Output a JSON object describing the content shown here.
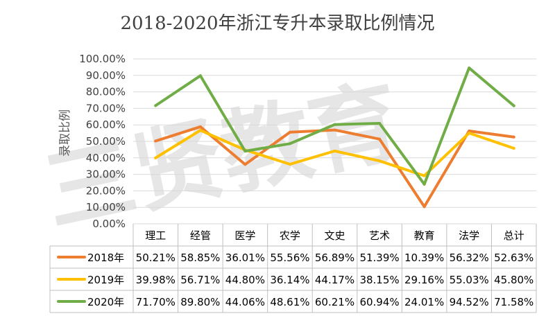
{
  "watermark": "三贤教育",
  "chart_data": {
    "type": "line",
    "title": "2018-2020年浙江专升本录取比例情况",
    "ylabel": "录取比例",
    "xlabel": "",
    "categories": [
      "理工",
      "经管",
      "医学",
      "农学",
      "文史",
      "艺术",
      "教育",
      "法学",
      "总计"
    ],
    "ylim": [
      0,
      100
    ],
    "yticks": [
      "0.00%",
      "10.00%",
      "20.00%",
      "30.00%",
      "40.00%",
      "50.00%",
      "60.00%",
      "70.00%",
      "80.00%",
      "90.00%",
      "100.00%"
    ],
    "grid": true,
    "legend_placement": "data-table",
    "series": [
      {
        "name": "2018年",
        "color": "#ed7d31",
        "values": [
          50.21,
          58.85,
          36.01,
          55.56,
          56.89,
          51.39,
          10.39,
          56.32,
          52.63
        ],
        "labels": [
          "50.21%",
          "58.85%",
          "36.01%",
          "55.56%",
          "56.89%",
          "51.39%",
          "10.39%",
          "56.32%",
          "52.63%"
        ]
      },
      {
        "name": "2019年",
        "color": "#ffc000",
        "values": [
          39.98,
          56.71,
          44.8,
          36.14,
          44.17,
          38.15,
          29.16,
          55.03,
          45.8
        ],
        "labels": [
          "39.98%",
          "56.71%",
          "44.80%",
          "36.14%",
          "44.17%",
          "38.15%",
          "29.16%",
          "55.03%",
          "45.80%"
        ]
      },
      {
        "name": "2020年",
        "color": "#70ad47",
        "values": [
          71.7,
          89.8,
          44.06,
          48.61,
          60.21,
          60.94,
          24.01,
          94.52,
          71.58
        ],
        "labels": [
          "71.70%",
          "89.80%",
          "44.06%",
          "48.61%",
          "60.21%",
          "60.94%",
          "24.01%",
          "94.52%",
          "71.58%"
        ]
      }
    ]
  }
}
